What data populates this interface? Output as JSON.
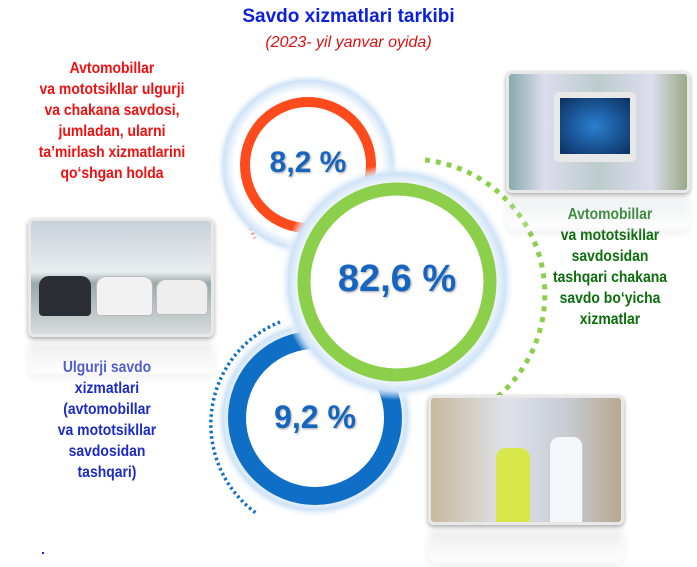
{
  "header": {
    "title": "Savdo xizmatlari tarkibi",
    "subtitle": "(2023- yil yanvar oyida)"
  },
  "segments": [
    {
      "value": "8,2 %",
      "color": "#ff4a1c",
      "label_lines": [
        "Avtomobillar",
        "va mototsikllar ulgurji",
        "va chakana savdosi,",
        "jumladan, ularni",
        "ta’mirlash xizmatlarini",
        "qo‘shgan holda"
      ]
    },
    {
      "value": "82,6 %",
      "color": "#8ccf4a",
      "label_lines": [
        "Avtomobillar",
        "va mototsikllar",
        "savdosidan",
        "tashqari chakana",
        "savdo bo‘yicha",
        "xizmatlar"
      ]
    },
    {
      "value": "9,2 %",
      "color": "#0f6fc6",
      "label_lines": [
        "Ulgurji savdo",
        "xizmatlari",
        "(avtomobillar",
        "va mototsikllar",
        "savdosidan",
        "tashqari)"
      ]
    }
  ],
  "images": [
    "tablet-shopping-basket-photo",
    "car-showroom-photo",
    "warehouse-handshake-photo"
  ]
}
